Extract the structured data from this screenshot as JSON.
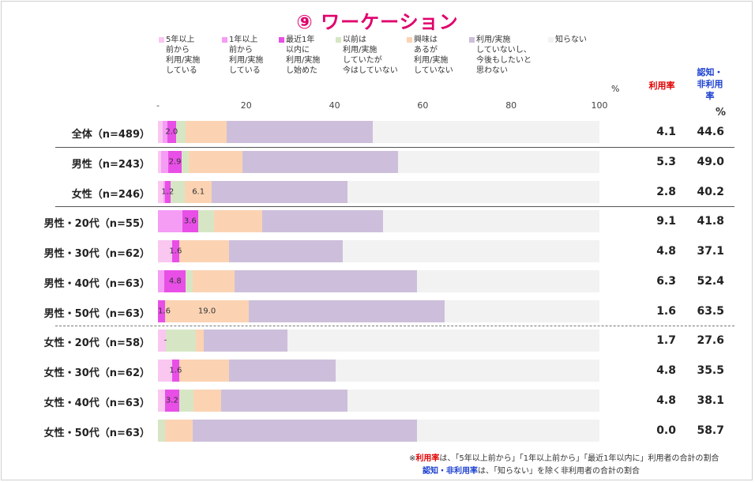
{
  "chart_data": {
    "type": "bar",
    "title": "⑨ ワーケーション",
    "unit": "%",
    "xlim": [
      0,
      100
    ],
    "ticks": [
      "-",
      "20",
      "40",
      "60",
      "80",
      "100"
    ],
    "legend": [
      {
        "label": "5年以上\n前から\n利用/実施\nしている",
        "color": "#f9c7f0"
      },
      {
        "label": "1年以上\n前から\n利用/実施\nしている",
        "color": "#f59cf5"
      },
      {
        "label": "最近1年\n以内に\n利用/実施\nし始めた",
        "color": "#e84fe6"
      },
      {
        "label": "以前は\n利用/実施\nしていたが\n今はしていない",
        "color": "#d6e6c4"
      },
      {
        "label": "興味は\nあるが\n利用/実施\nしていない",
        "color": "#fbd3b3"
      },
      {
        "label": "利用/実施\nしていないし、\n今後もしたいと\n思わない",
        "color": "#cdbfdb"
      },
      {
        "label": "知らない",
        "color": "#f2f2f2"
      }
    ],
    "rate_header": "利用率",
    "aware_header_1": "認知・",
    "aware_header_2": "非利用",
    "aware_header_3": "率",
    "rate_unit": "%",
    "rows": [
      {
        "label": "全体（n=489）",
        "values": [
          1.0,
          1.1,
          2.0,
          2.1,
          9.3,
          33.1,
          51.4
        ],
        "seg_label": "2.0",
        "seg_label_index": 2,
        "rate": "4.1",
        "aware": "44.6"
      },
      {
        "label": "男性（n=243）",
        "values": [
          0.8,
          1.6,
          2.9,
          1.6,
          12.2,
          35.2,
          45.7
        ],
        "seg_label": "2.9",
        "seg_label_index": 2,
        "rate": "5.3",
        "aware": "49.0"
      },
      {
        "label": "女性（n=246）",
        "values": [
          1.2,
          0.4,
          1.2,
          3.3,
          6.1,
          30.8,
          57.0
        ],
        "seg_label_pairs": [
          {
            "text": "1.2",
            "index": 2
          },
          {
            "text": "6.1",
            "index": 4
          }
        ],
        "rate": "2.8",
        "aware": "40.2"
      },
      {
        "label": "男性・20代（n=55）",
        "values": [
          0.0,
          5.5,
          3.6,
          3.6,
          11.0,
          27.3,
          49.0
        ],
        "seg_label": "3.6",
        "seg_label_index": 2,
        "rate": "9.1",
        "aware": "41.8"
      },
      {
        "label": "男性・30代（n=62）",
        "values": [
          3.2,
          0.0,
          1.6,
          0.0,
          11.3,
          25.8,
          58.1
        ],
        "seg_label": "1.6",
        "seg_label_index": 2,
        "rate": "4.8",
        "aware": "37.1"
      },
      {
        "label": "男性・40代（n=63）",
        "values": [
          0.0,
          1.5,
          4.8,
          1.6,
          9.5,
          41.3,
          41.3
        ],
        "seg_label": "4.8",
        "seg_label_index": 2,
        "rate": "6.3",
        "aware": "52.4"
      },
      {
        "label": "男性・50代（n=63）",
        "values": [
          0.0,
          0.0,
          1.6,
          0.0,
          19.0,
          44.4,
          35.0
        ],
        "seg_label_pairs": [
          {
            "text": "1.6",
            "index": 2
          },
          {
            "text": "19.0",
            "index": 4
          }
        ],
        "rate": "1.6",
        "aware": "63.5"
      },
      {
        "label": "女性・20代（n=58）",
        "values": [
          1.7,
          0.0,
          0.0,
          6.9,
          1.7,
          19.0,
          70.7
        ],
        "seg_label": "-",
        "seg_label_index": 2,
        "rate": "1.7",
        "aware": "27.6"
      },
      {
        "label": "女性・30代（n=62）",
        "values": [
          3.2,
          0.0,
          1.6,
          0.0,
          11.3,
          24.2,
          59.7
        ],
        "seg_label": "1.6",
        "seg_label_index": 2,
        "rate": "4.8",
        "aware": "35.5"
      },
      {
        "label": "女性・40代（n=63）",
        "values": [
          1.6,
          0.0,
          3.2,
          3.2,
          6.3,
          28.6,
          57.1
        ],
        "seg_label": "3.2",
        "seg_label_index": 2,
        "rate": "4.8",
        "aware": "38.1"
      },
      {
        "label": "女性・50代（n=63）",
        "values": [
          0.0,
          0.0,
          0.0,
          1.6,
          6.3,
          50.8,
          41.3
        ],
        "rate": "0.0",
        "aware": "58.7"
      }
    ]
  },
  "notes": {
    "line1_prefix": "※",
    "line1_bold": "利用率",
    "line1_rest": "は、「5年以上前から」「1年以上前から」「最近1年以内に」利用者の合計の割合",
    "line2_bold": "認知・非利用率",
    "line2_rest": "は、「知らない」を除く非利用者の合計の割合"
  },
  "colors": {
    "title": "#e0006c",
    "rate_header": "#e00000",
    "aware_header": "#1a3fd0",
    "note_rate": "#e00000",
    "note_aware": "#1a3fd0"
  }
}
